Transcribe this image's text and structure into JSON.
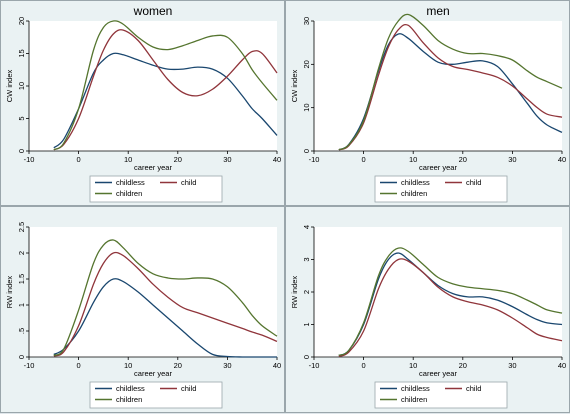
{
  "legend_labels": [
    "childless",
    "child",
    "children"
  ],
  "colors": {
    "childless": "#1a476f",
    "child": "#90353b",
    "children": "#55752f",
    "panel_bg": "#eaf2f3",
    "plot_bg": "#ffffff"
  },
  "chart_data": [
    {
      "type": "line",
      "title": "women",
      "xlabel": "career year",
      "ylabel": "CW index",
      "xlim": [
        -10,
        40
      ],
      "ylim": [
        0,
        20
      ],
      "xticks": [
        "-10",
        "0",
        "10",
        "20",
        "30",
        "40"
      ],
      "yticks": [
        "0",
        "5",
        "10",
        "15",
        "20"
      ],
      "x": [
        -5,
        -3,
        0,
        3,
        5,
        7,
        9,
        12,
        15,
        18,
        21,
        24,
        27,
        30,
        33,
        35,
        37,
        40
      ],
      "series": [
        {
          "name": "childless",
          "values": [
            0.5,
            1.8,
            6.5,
            12.0,
            14.0,
            15.0,
            14.8,
            14.0,
            13.2,
            12.6,
            12.6,
            12.9,
            12.6,
            11.2,
            8.5,
            6.5,
            5.0,
            2.4
          ]
        },
        {
          "name": "child",
          "values": [
            0.2,
            1.0,
            5.0,
            11.5,
            15.5,
            18.0,
            18.6,
            17.0,
            14.0,
            11.0,
            9.0,
            8.5,
            9.5,
            11.5,
            14.0,
            15.3,
            15.0,
            12.0
          ]
        },
        {
          "name": "children",
          "values": [
            0.2,
            1.2,
            6.5,
            15.5,
            19.0,
            20.0,
            19.5,
            17.5,
            16.0,
            15.6,
            16.2,
            17.0,
            17.7,
            17.5,
            15.0,
            12.5,
            10.5,
            7.8
          ]
        }
      ]
    },
    {
      "type": "line",
      "title": "men",
      "xlabel": "career year",
      "ylabel": "CW index",
      "xlim": [
        -10,
        40
      ],
      "ylim": [
        0,
        30
      ],
      "xticks": [
        "-10",
        "0",
        "10",
        "20",
        "30",
        "40"
      ],
      "yticks": [
        "0",
        "10",
        "20",
        "30"
      ],
      "x": [
        -5,
        -3,
        0,
        3,
        5,
        7,
        9,
        12,
        15,
        18,
        21,
        24,
        27,
        30,
        33,
        35,
        37,
        40
      ],
      "series": [
        {
          "name": "childless",
          "values": [
            0.3,
            1.5,
            7.5,
            18.5,
            24.5,
            27.0,
            26.0,
            23.0,
            20.5,
            20.0,
            20.5,
            20.8,
            19.5,
            15.5,
            11.0,
            8.0,
            6.0,
            4.3
          ]
        },
        {
          "name": "child",
          "values": [
            0.3,
            1.2,
            6.5,
            17.5,
            24.0,
            28.0,
            29.0,
            25.0,
            21.5,
            19.5,
            18.8,
            18.0,
            17.0,
            15.0,
            12.0,
            10.0,
            8.5,
            7.8
          ]
        },
        {
          "name": "children",
          "values": [
            0.3,
            1.4,
            7.0,
            19.0,
            26.0,
            30.0,
            31.5,
            29.0,
            25.5,
            23.5,
            22.5,
            22.5,
            22.0,
            21.0,
            18.5,
            17.0,
            16.0,
            14.5
          ]
        }
      ]
    },
    {
      "type": "line",
      "title": "",
      "xlabel": "career year",
      "ylabel": "RW index",
      "xlim": [
        -10,
        40
      ],
      "ylim": [
        0,
        2.5
      ],
      "xticks": [
        "-10",
        "0",
        "10",
        "20",
        "30",
        "40"
      ],
      "yticks": [
        "0",
        ".5",
        "1",
        "1.5",
        "2",
        "2.5"
      ],
      "x": [
        -5,
        -3,
        0,
        3,
        5,
        7,
        9,
        12,
        15,
        18,
        21,
        24,
        27,
        30,
        33,
        35,
        37,
        40
      ],
      "series": [
        {
          "name": "childless",
          "values": [
            0.05,
            0.15,
            0.5,
            1.05,
            1.35,
            1.5,
            1.45,
            1.25,
            1.0,
            0.75,
            0.5,
            0.25,
            0.05,
            0.01,
            0.0,
            0.0,
            0.0,
            0.0
          ]
        },
        {
          "name": "child",
          "values": [
            0.02,
            0.1,
            0.6,
            1.4,
            1.8,
            2.0,
            1.95,
            1.7,
            1.4,
            1.15,
            0.95,
            0.85,
            0.75,
            0.65,
            0.55,
            0.48,
            0.42,
            0.3
          ]
        },
        {
          "name": "children",
          "values": [
            0.03,
            0.15,
            0.9,
            1.8,
            2.15,
            2.25,
            2.1,
            1.8,
            1.6,
            1.52,
            1.5,
            1.52,
            1.5,
            1.35,
            1.05,
            0.8,
            0.6,
            0.4
          ]
        }
      ]
    },
    {
      "type": "line",
      "title": "",
      "xlabel": "career year",
      "ylabel": "RW index",
      "xlim": [
        -10,
        40
      ],
      "ylim": [
        0,
        4
      ],
      "xticks": [
        "-10",
        "0",
        "10",
        "20",
        "30",
        "40"
      ],
      "yticks": [
        "0",
        "1",
        "2",
        "3",
        "4"
      ],
      "x": [
        -5,
        -3,
        0,
        3,
        5,
        7,
        9,
        12,
        15,
        18,
        21,
        24,
        27,
        30,
        33,
        35,
        37,
        40
      ],
      "series": [
        {
          "name": "childless",
          "values": [
            0.05,
            0.2,
            1.0,
            2.4,
            3.0,
            3.2,
            3.0,
            2.6,
            2.2,
            1.95,
            1.85,
            1.85,
            1.75,
            1.55,
            1.3,
            1.15,
            1.05,
            1.0
          ]
        },
        {
          "name": "child",
          "values": [
            0.02,
            0.15,
            0.8,
            2.1,
            2.7,
            3.0,
            2.95,
            2.6,
            2.15,
            1.85,
            1.7,
            1.6,
            1.45,
            1.2,
            0.9,
            0.7,
            0.6,
            0.5
          ]
        },
        {
          "name": "children",
          "values": [
            0.05,
            0.2,
            1.05,
            2.5,
            3.1,
            3.35,
            3.25,
            2.85,
            2.45,
            2.25,
            2.15,
            2.1,
            2.05,
            1.95,
            1.75,
            1.6,
            1.45,
            1.35
          ]
        }
      ]
    }
  ]
}
